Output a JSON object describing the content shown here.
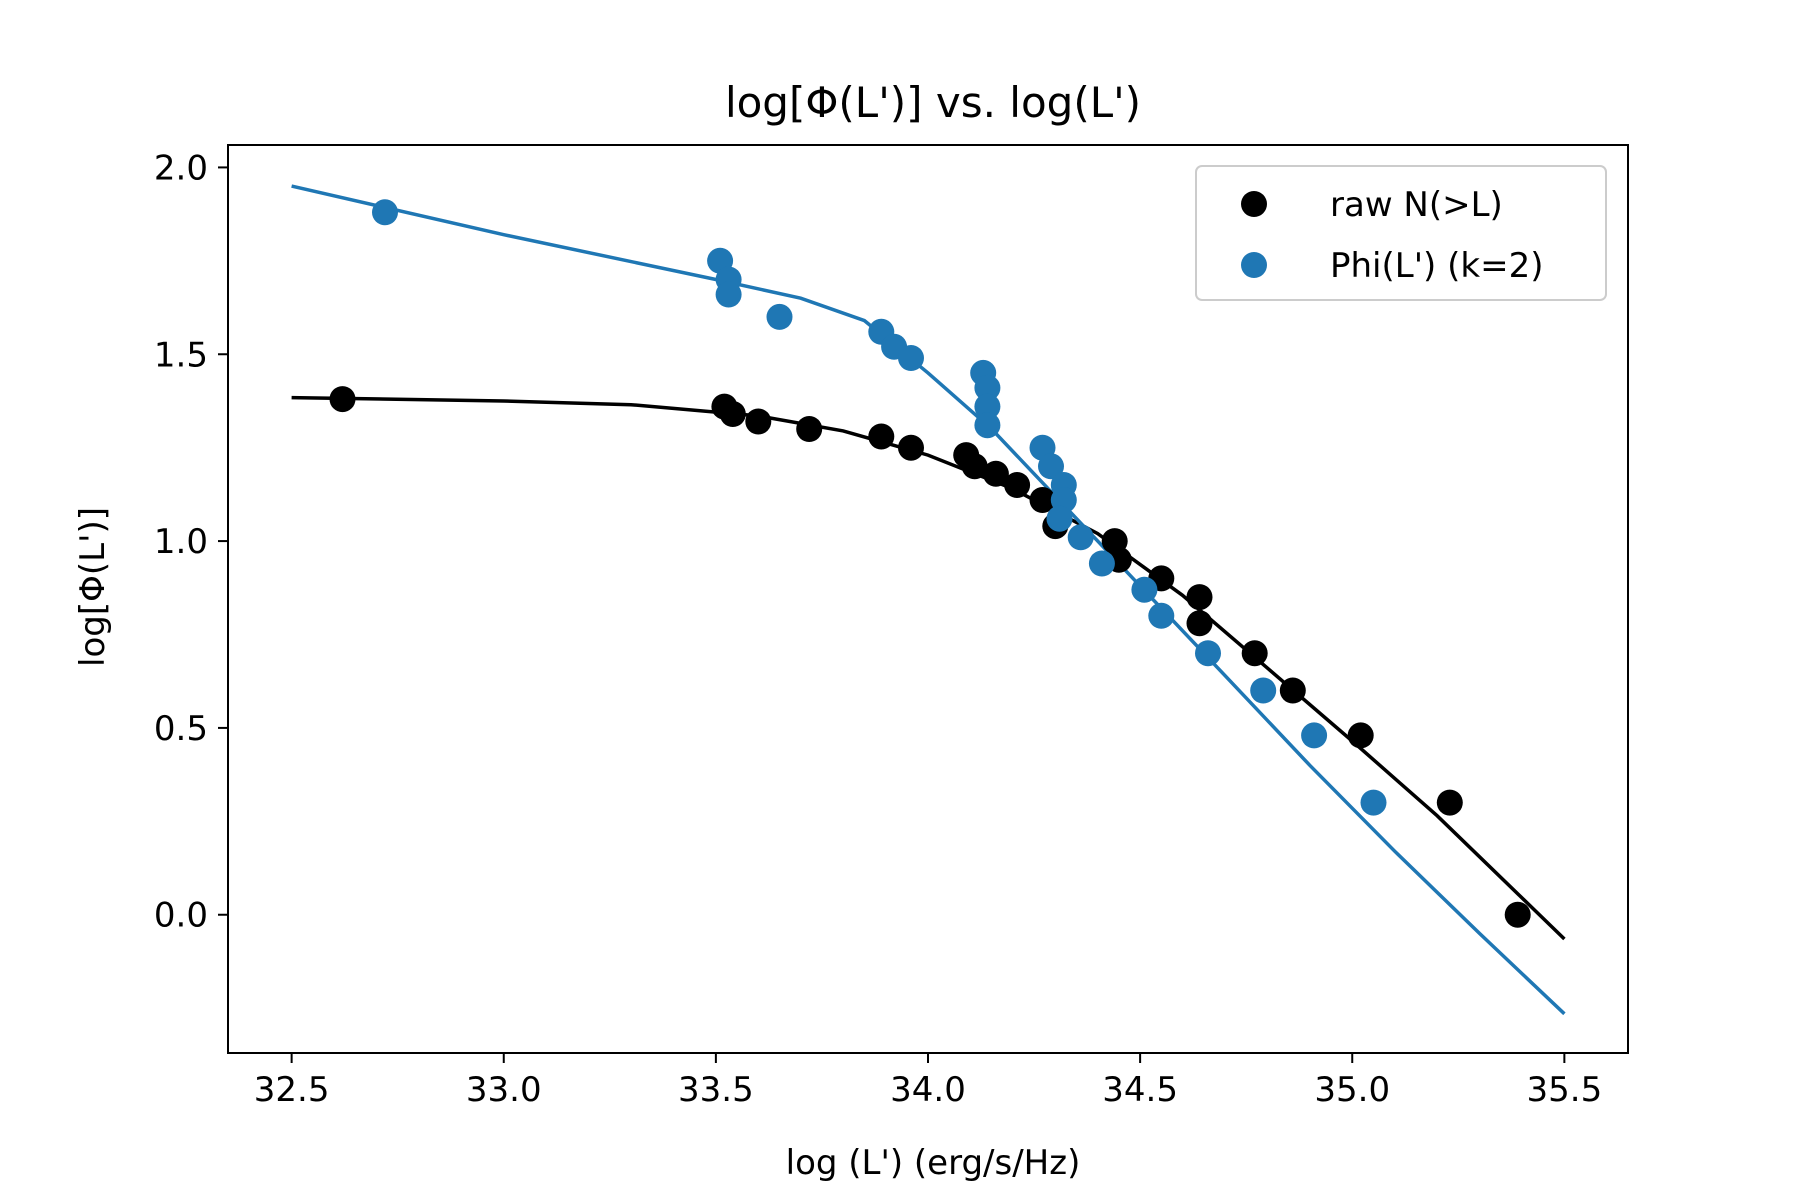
{
  "chart_data": {
    "type": "scatter",
    "title": "log[Φ(L')] vs. log(L')",
    "xlabel": "log (L') (erg/s/Hz)",
    "ylabel": "log[Φ(L')]",
    "xlim": [
      32.35,
      35.65
    ],
    "ylim": [
      -0.37,
      2.06
    ],
    "xticks": [
      32.5,
      33.0,
      33.5,
      34.0,
      34.5,
      35.0,
      35.5
    ],
    "xtick_labels": [
      "32.5",
      "33.0",
      "33.5",
      "34.0",
      "34.5",
      "35.0",
      "35.5"
    ],
    "yticks": [
      0.0,
      0.5,
      1.0,
      1.5,
      2.0
    ],
    "ytick_labels": [
      "0.0",
      "0.5",
      "1.0",
      "1.5",
      "2.0"
    ],
    "grid": false,
    "legend_position": "top-right",
    "series": [
      {
        "name": "raw N(>L)",
        "color": "#000000",
        "points": [
          [
            32.62,
            1.38
          ],
          [
            33.52,
            1.36
          ],
          [
            33.54,
            1.34
          ],
          [
            33.6,
            1.32
          ],
          [
            33.72,
            1.3
          ],
          [
            33.89,
            1.28
          ],
          [
            33.96,
            1.25
          ],
          [
            34.09,
            1.23
          ],
          [
            34.11,
            1.2
          ],
          [
            34.16,
            1.18
          ],
          [
            34.21,
            1.15
          ],
          [
            34.27,
            1.11
          ],
          [
            34.3,
            1.04
          ],
          [
            34.44,
            1.0
          ],
          [
            34.45,
            0.95
          ],
          [
            34.55,
            0.9
          ],
          [
            34.64,
            0.85
          ],
          [
            34.64,
            0.78
          ],
          [
            34.77,
            0.7
          ],
          [
            34.86,
            0.6
          ],
          [
            35.02,
            0.48
          ],
          [
            35.23,
            0.3
          ],
          [
            35.39,
            0.0
          ]
        ],
        "fit": [
          [
            32.5,
            1.384
          ],
          [
            33.0,
            1.375
          ],
          [
            33.3,
            1.365
          ],
          [
            33.6,
            1.335
          ],
          [
            33.8,
            1.295
          ],
          [
            34.0,
            1.23
          ],
          [
            34.2,
            1.14
          ],
          [
            34.4,
            1.02
          ],
          [
            34.6,
            0.855
          ],
          [
            34.8,
            0.66
          ],
          [
            35.0,
            0.465
          ],
          [
            35.2,
            0.265
          ],
          [
            35.5,
            -0.065
          ]
        ]
      },
      {
        "name": "Phi(L') (k=2)",
        "color": "#1f77b4",
        "points": [
          [
            32.72,
            1.88
          ],
          [
            33.51,
            1.75
          ],
          [
            33.53,
            1.7
          ],
          [
            33.53,
            1.66
          ],
          [
            33.65,
            1.6
          ],
          [
            33.89,
            1.56
          ],
          [
            33.92,
            1.52
          ],
          [
            33.96,
            1.49
          ],
          [
            34.13,
            1.45
          ],
          [
            34.14,
            1.41
          ],
          [
            34.14,
            1.36
          ],
          [
            34.14,
            1.31
          ],
          [
            34.27,
            1.25
          ],
          [
            34.29,
            1.2
          ],
          [
            34.32,
            1.15
          ],
          [
            34.32,
            1.11
          ],
          [
            34.31,
            1.06
          ],
          [
            34.36,
            1.01
          ],
          [
            34.41,
            0.94
          ],
          [
            34.51,
            0.87
          ],
          [
            34.55,
            0.8
          ],
          [
            34.66,
            0.7
          ],
          [
            34.79,
            0.6
          ],
          [
            34.91,
            0.48
          ],
          [
            35.05,
            0.3
          ]
        ],
        "fit": [
          [
            32.5,
            1.95
          ],
          [
            33.0,
            1.82
          ],
          [
            33.5,
            1.7
          ],
          [
            33.7,
            1.65
          ],
          [
            33.85,
            1.59
          ],
          [
            34.0,
            1.45
          ],
          [
            34.15,
            1.3
          ],
          [
            34.3,
            1.12
          ],
          [
            34.5,
            0.88
          ],
          [
            34.7,
            0.64
          ],
          [
            34.9,
            0.4
          ],
          [
            35.1,
            0.17
          ],
          [
            35.3,
            -0.05
          ],
          [
            35.5,
            -0.265
          ]
        ]
      }
    ]
  }
}
